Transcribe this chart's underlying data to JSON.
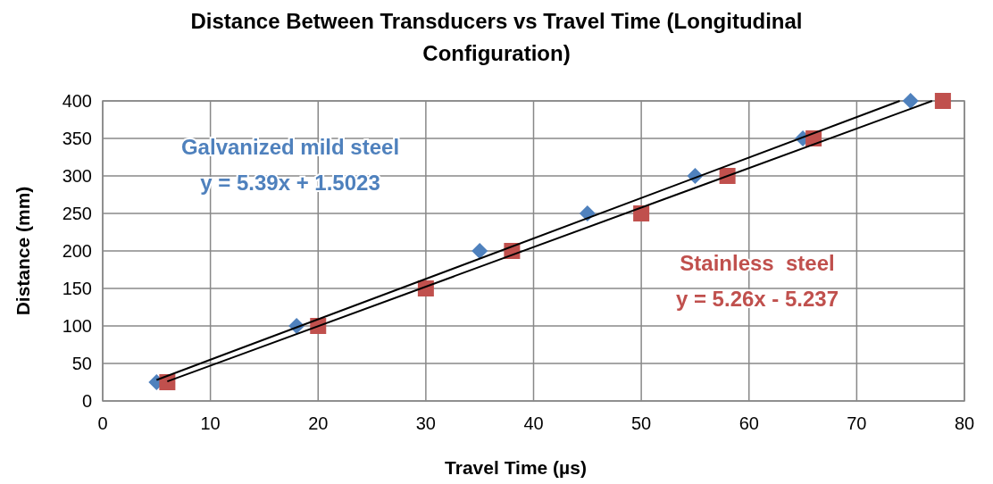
{
  "chart_data": {
    "type": "scatter",
    "title": "Distance Between Transducers vs Travel Time (Longitudinal Configuration)",
    "xlabel": "Travel Time (µs)",
    "ylabel": "Distance (mm)",
    "xlim": [
      0,
      80
    ],
    "xticks": [
      0,
      10,
      20,
      30,
      40,
      50,
      60,
      70,
      80
    ],
    "ylim": [
      0,
      400
    ],
    "yticks": [
      0,
      50,
      100,
      150,
      200,
      250,
      300,
      350,
      400
    ],
    "grid": true,
    "series": [
      {
        "name": "Galvanized mild steel",
        "color": "#4f81bd",
        "marker": "diamond",
        "x": [
          5,
          18,
          35,
          45,
          55,
          65,
          75
        ],
        "values": [
          25,
          100,
          200,
          250,
          300,
          350,
          400
        ]
      },
      {
        "name": "Stainless  steel",
        "color": "#c0504d",
        "marker": "square",
        "x": [
          6,
          20,
          30,
          38,
          50,
          58,
          66,
          78
        ],
        "values": [
          25,
          100,
          150,
          200,
          250,
          300,
          350,
          400
        ]
      },
      {
        "type": "line",
        "color": "#000000",
        "marker": "none",
        "x": [
          5,
          74
        ],
        "values": [
          28,
          400
        ]
      },
      {
        "type": "line",
        "color": "#000000",
        "marker": "none",
        "x": [
          6,
          77
        ],
        "values": [
          26,
          400
        ]
      }
    ],
    "annotations": [
      "y = 5.39x + 1.5023",
      "y = 5.26x - 5.237"
    ]
  }
}
